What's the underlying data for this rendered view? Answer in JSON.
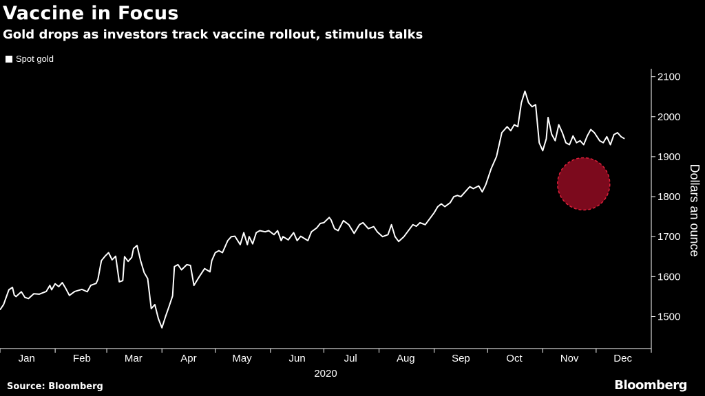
{
  "title": "Vaccine in Focus",
  "subtitle": "Gold drops as investors track vaccine rollout, stimulus talks",
  "source": "Source: Bloomberg",
  "brand": "Bloomberg",
  "colors": {
    "background": "#000000",
    "line": "#ffffff",
    "highlight": "#c8102e"
  },
  "chart_data": {
    "type": "line",
    "ylabel": "Dollars an ounce",
    "xlabel": "2020",
    "ylim": [
      1420,
      2120
    ],
    "yticks": [
      1500,
      1600,
      1700,
      1800,
      1900,
      2000,
      2100
    ],
    "months": [
      "Jan",
      "Feb",
      "Mar",
      "Apr",
      "May",
      "Jun",
      "Jul",
      "Aug",
      "Sep",
      "Oct",
      "Nov",
      "Dec"
    ],
    "grid": false,
    "legend_position": "top-left",
    "highlight": {
      "shape": "circle",
      "center": [
        "2020-11-24",
        1832
      ],
      "note": "dashed red circle over late-Nov dip"
    },
    "series": [
      {
        "name": "Spot gold",
        "points": [
          [
            "2020-01-01",
            1517
          ],
          [
            "2020-01-03",
            1530
          ],
          [
            "2020-01-06",
            1567
          ],
          [
            "2020-01-08",
            1573
          ],
          [
            "2020-01-09",
            1554
          ],
          [
            "2020-01-10",
            1550
          ],
          [
            "2020-01-13",
            1562
          ],
          [
            "2020-01-15",
            1548
          ],
          [
            "2020-01-17",
            1545
          ],
          [
            "2020-01-20",
            1557
          ],
          [
            "2020-01-23",
            1556
          ],
          [
            "2020-01-27",
            1563
          ],
          [
            "2020-01-29",
            1578
          ],
          [
            "2020-01-30",
            1567
          ],
          [
            "2020-02-01",
            1582
          ],
          [
            "2020-02-03",
            1575
          ],
          [
            "2020-02-05",
            1585
          ],
          [
            "2020-02-07",
            1570
          ],
          [
            "2020-02-09",
            1553
          ],
          [
            "2020-02-12",
            1563
          ],
          [
            "2020-02-16",
            1568
          ],
          [
            "2020-02-19",
            1562
          ],
          [
            "2020-02-21",
            1578
          ],
          [
            "2020-02-24",
            1583
          ],
          [
            "2020-02-25",
            1593
          ],
          [
            "2020-02-27",
            1640
          ],
          [
            "2020-02-29",
            1651
          ],
          [
            "2020-03-02",
            1660
          ],
          [
            "2020-03-04",
            1642
          ],
          [
            "2020-03-06",
            1651
          ],
          [
            "2020-03-08",
            1587
          ],
          [
            "2020-03-10",
            1590
          ],
          [
            "2020-03-11",
            1650
          ],
          [
            "2020-03-13",
            1638
          ],
          [
            "2020-03-15",
            1648
          ],
          [
            "2020-03-16",
            1670
          ],
          [
            "2020-03-18",
            1678
          ],
          [
            "2020-03-20",
            1640
          ],
          [
            "2020-03-22",
            1610
          ],
          [
            "2020-03-24",
            1595
          ],
          [
            "2020-03-26",
            1520
          ],
          [
            "2020-03-28",
            1530
          ],
          [
            "2020-03-30",
            1495
          ],
          [
            "2020-04-01",
            1472
          ],
          [
            "2020-04-03",
            1500
          ],
          [
            "2020-04-05",
            1525
          ],
          [
            "2020-04-07",
            1552
          ],
          [
            "2020-04-08",
            1625
          ],
          [
            "2020-04-10",
            1630
          ],
          [
            "2020-04-12",
            1617
          ],
          [
            "2020-04-15",
            1630
          ],
          [
            "2020-04-17",
            1628
          ],
          [
            "2020-04-19",
            1578
          ],
          [
            "2020-04-22",
            1600
          ],
          [
            "2020-04-25",
            1620
          ],
          [
            "2020-04-28",
            1612
          ],
          [
            "2020-04-29",
            1640
          ],
          [
            "2020-05-01",
            1660
          ],
          [
            "2020-05-03",
            1665
          ],
          [
            "2020-05-05",
            1660
          ],
          [
            "2020-05-08",
            1690
          ],
          [
            "2020-05-10",
            1700
          ],
          [
            "2020-05-12",
            1701
          ],
          [
            "2020-05-15",
            1680
          ],
          [
            "2020-05-17",
            1710
          ],
          [
            "2020-05-19",
            1680
          ],
          [
            "2020-05-20",
            1700
          ],
          [
            "2020-05-22",
            1682
          ],
          [
            "2020-05-24",
            1710
          ],
          [
            "2020-05-26",
            1715
          ],
          [
            "2020-05-29",
            1712
          ],
          [
            "2020-05-31",
            1715
          ],
          [
            "2020-06-03",
            1705
          ],
          [
            "2020-06-05",
            1715
          ],
          [
            "2020-06-07",
            1690
          ],
          [
            "2020-06-08",
            1700
          ],
          [
            "2020-06-11",
            1692
          ],
          [
            "2020-06-14",
            1710
          ],
          [
            "2020-06-16",
            1690
          ],
          [
            "2020-06-18",
            1701
          ],
          [
            "2020-06-22",
            1690
          ],
          [
            "2020-06-24",
            1712
          ],
          [
            "2020-06-27",
            1722
          ],
          [
            "2020-06-29",
            1733
          ],
          [
            "2020-07-01",
            1735
          ],
          [
            "2020-07-04",
            1748
          ],
          [
            "2020-07-05",
            1742
          ],
          [
            "2020-07-07",
            1720
          ],
          [
            "2020-07-09",
            1715
          ],
          [
            "2020-07-12",
            1740
          ],
          [
            "2020-07-15",
            1730
          ],
          [
            "2020-07-18",
            1708
          ],
          [
            "2020-07-21",
            1730
          ],
          [
            "2020-07-23",
            1735
          ],
          [
            "2020-07-26",
            1720
          ],
          [
            "2020-07-29",
            1725
          ],
          [
            "2020-07-31",
            1712
          ],
          [
            "2020-08-03",
            1700
          ],
          [
            "2020-08-06",
            1705
          ],
          [
            "2020-08-08",
            1730
          ],
          [
            "2020-08-10",
            1700
          ],
          [
            "2020-08-12",
            1688
          ],
          [
            "2020-08-15",
            1700
          ],
          [
            "2020-08-17",
            1712
          ],
          [
            "2020-08-20",
            1730
          ],
          [
            "2020-08-22",
            1726
          ],
          [
            "2020-08-24",
            1735
          ],
          [
            "2020-08-27",
            1730
          ],
          [
            "2020-08-30",
            1748
          ],
          [
            "2020-09-01",
            1760
          ],
          [
            "2020-09-03",
            1775
          ],
          [
            "2020-09-05",
            1782
          ],
          [
            "2020-09-07",
            1775
          ],
          [
            "2020-09-10",
            1785
          ],
          [
            "2020-09-12",
            1800
          ],
          [
            "2020-09-14",
            1803
          ],
          [
            "2020-09-16",
            1800
          ],
          [
            "2020-09-19",
            1815
          ],
          [
            "2020-09-21",
            1825
          ],
          [
            "2020-09-23",
            1820
          ],
          [
            "2020-09-26",
            1827
          ],
          [
            "2020-09-28",
            1812
          ],
          [
            "2020-09-30",
            1830
          ],
          [
            "2020-10-03",
            1870
          ],
          [
            "2020-10-06",
            1900
          ],
          [
            "2020-10-09",
            1960
          ],
          [
            "2020-10-12",
            1975
          ],
          [
            "2020-10-14",
            1965
          ],
          [
            "2020-10-16",
            1980
          ],
          [
            "2020-10-18",
            1975
          ],
          [
            "2020-10-20",
            2035
          ],
          [
            "2020-10-22",
            2064
          ],
          [
            "2020-10-24",
            2035
          ],
          [
            "2020-10-26",
            2025
          ],
          [
            "2020-10-28",
            2030
          ],
          [
            "2020-10-30",
            1935
          ],
          [
            "2020-11-01",
            1915
          ],
          [
            "2020-11-03",
            1945
          ],
          [
            "2020-11-04",
            1998
          ],
          [
            "2020-11-06",
            1956
          ],
          [
            "2020-11-08",
            1940
          ],
          [
            "2020-11-10",
            1980
          ],
          [
            "2020-11-12",
            1960
          ],
          [
            "2020-11-14",
            1935
          ],
          [
            "2020-11-16",
            1930
          ],
          [
            "2020-11-18",
            1952
          ],
          [
            "2020-11-20",
            1935
          ],
          [
            "2020-11-22",
            1940
          ],
          [
            "2020-11-24",
            1930
          ],
          [
            "2020-11-26",
            1952
          ],
          [
            "2020-11-28",
            1968
          ],
          [
            "2020-11-30",
            1960
          ],
          [
            "2020-12-03",
            1940
          ],
          [
            "2020-12-05",
            1935
          ],
          [
            "2020-12-07",
            1950
          ],
          [
            "2020-12-09",
            1930
          ],
          [
            "2020-12-11",
            1955
          ],
          [
            "2020-12-13",
            1960
          ],
          [
            "2020-12-15",
            1950
          ],
          [
            "2020-12-17",
            1945
          ]
        ]
      }
    ]
  }
}
